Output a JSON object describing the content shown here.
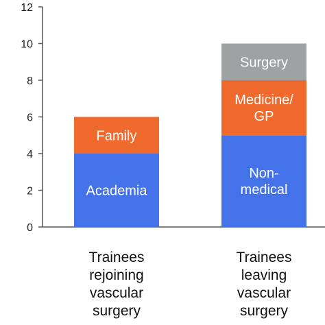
{
  "chart_data": {
    "type": "bar",
    "stacked": true,
    "ylim": [
      0,
      12
    ],
    "yticks": [
      0,
      2,
      4,
      6,
      8,
      10,
      12
    ],
    "xlabel": "",
    "ylabel": "",
    "title": "",
    "grid": false,
    "categories": [
      [
        "Trainees",
        "rejoining",
        "vascular",
        "surgery"
      ],
      [
        "Trainees",
        "leaving",
        "vascular",
        "surgery"
      ]
    ],
    "bars": [
      {
        "segments": [
          {
            "label": [
              "Academia"
            ],
            "value": 4,
            "color": "#4472E8"
          },
          {
            "label": [
              "Family"
            ],
            "value": 2,
            "color": "#F06A2E"
          }
        ]
      },
      {
        "segments": [
          {
            "label": [
              "Non-",
              "medical"
            ],
            "value": 5,
            "color": "#4472E8"
          },
          {
            "label": [
              "Medicine/",
              "GP"
            ],
            "value": 3,
            "color": "#F06A2E"
          },
          {
            "label": [
              "Surgery"
            ],
            "value": 2,
            "color": "#9DA3A3"
          }
        ]
      }
    ]
  }
}
